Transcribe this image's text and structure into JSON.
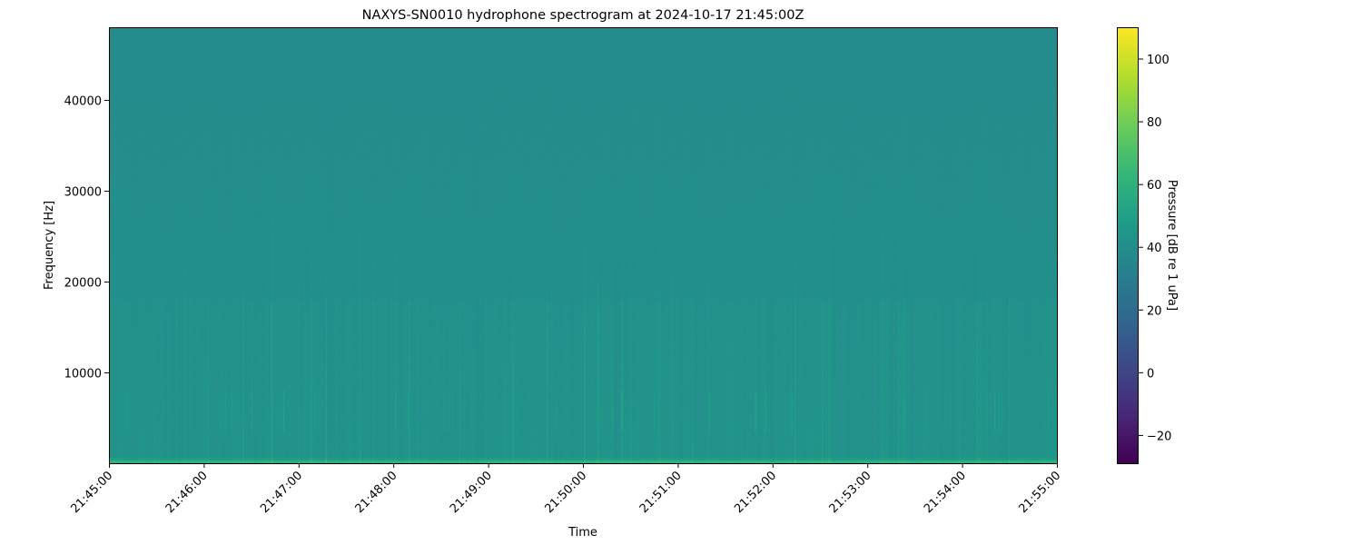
{
  "chart_data": {
    "type": "heatmap",
    "title": "NAXYS-SN0010 hydrophone spectrogram at 2024-10-17 21:45:00Z",
    "xlabel": "Time",
    "ylabel": "Frequency [Hz]",
    "colorbar_label": "Pressure [dB re 1 uPa]",
    "colormap": "viridis",
    "xlim": [
      "21:45:00",
      "21:55:00"
    ],
    "ylim": [
      0,
      48000
    ],
    "zlim": [
      -29,
      110
    ],
    "x_ticks": [
      "21:45:00",
      "21:46:00",
      "21:47:00",
      "21:48:00",
      "21:49:00",
      "21:50:00",
      "21:51:00",
      "21:52:00",
      "21:53:00",
      "21:54:00",
      "21:55:00"
    ],
    "y_ticks": [
      10000,
      20000,
      30000,
      40000
    ],
    "colorbar_ticks": [
      -20,
      0,
      20,
      40,
      60,
      80,
      100
    ],
    "grid": false,
    "background_level_db": 40,
    "features": [
      {
        "label_hz": [
          3500,
          8000
        ],
        "level_db": 52
      },
      {
        "label_hz": [
          0,
          300
        ],
        "level_db": 62
      }
    ]
  }
}
